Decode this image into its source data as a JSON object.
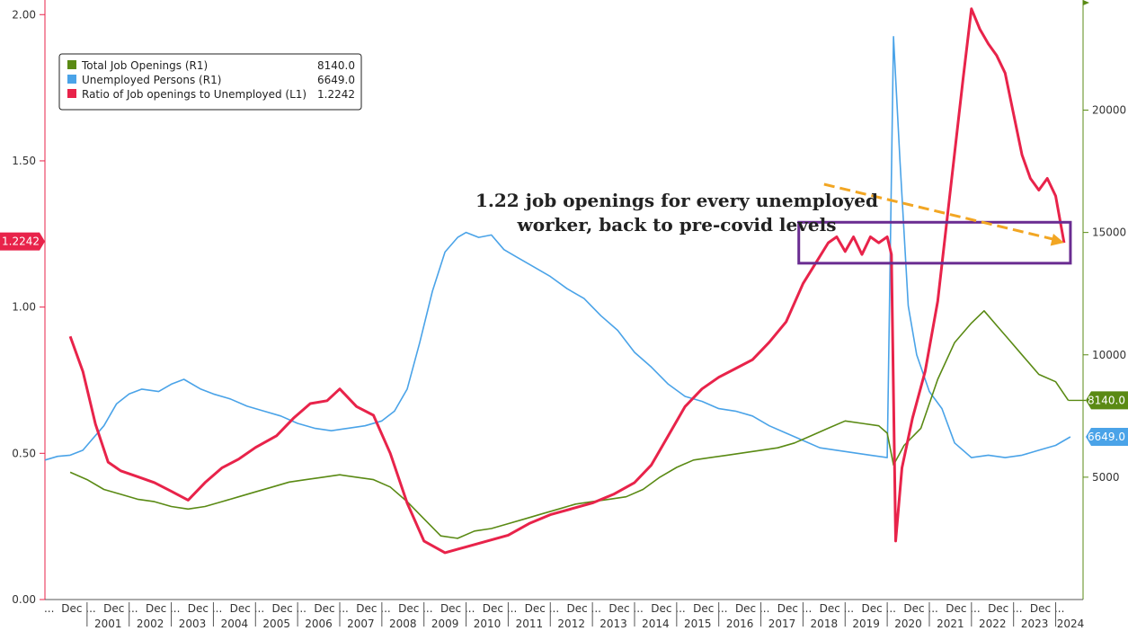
{
  "chart_data": {
    "type": "line",
    "title": "",
    "colors": {
      "openings": "#5a8a14",
      "unemployed": "#4aa3e8",
      "ratio": "#e8234a",
      "box": "#6a2c91",
      "arrow": "#f2a623"
    },
    "left_axis": {
      "range": [
        0,
        2.05
      ],
      "ticks": [
        "0.00",
        "0.50",
        "1.00",
        "1.50",
        "2.00"
      ],
      "tick_values": [
        0,
        0.5,
        1.0,
        1.5,
        2.0
      ]
    },
    "right_axis": {
      "range": [
        0,
        24500
      ],
      "ticks": [
        "5000",
        "10000",
        "15000",
        "20000"
      ],
      "tick_values": [
        5000,
        10000,
        15000,
        20000
      ]
    },
    "x_axis": {
      "range": [
        2000.0,
        2024.65
      ],
      "month_labels": [
        "...",
        "Dec ...",
        "Dec ...",
        "Dec ...",
        "Dec ...",
        "Dec ...",
        "Dec ...",
        "Dec ...",
        "Dec ...",
        "Dec ...",
        "Dec ...",
        "Dec ...",
        "Dec ...",
        "Dec ...",
        "Dec ...",
        "Dec ...",
        "Dec ...",
        "Dec ...",
        "Dec ...",
        "Dec ...",
        "Dec ...",
        "Dec ...",
        "Dec ...",
        "Dec ...",
        "Dec ..."
      ],
      "month_positions": [
        2000.1,
        2000.8,
        2001.8,
        2002.8,
        2003.8,
        2004.8,
        2005.8,
        2006.8,
        2007.8,
        2008.8,
        2009.8,
        2010.8,
        2011.8,
        2012.8,
        2013.8,
        2014.8,
        2015.8,
        2016.8,
        2017.8,
        2018.8,
        2019.8,
        2020.8,
        2021.8,
        2022.8,
        2023.8
      ],
      "years": [
        "2001",
        "2002",
        "2003",
        "2004",
        "2005",
        "2006",
        "2007",
        "2008",
        "2009",
        "2010",
        "2011",
        "2012",
        "2013",
        "2014",
        "2015",
        "2016",
        "2017",
        "2018",
        "2019",
        "2020",
        "2021",
        "2022",
        "2023",
        "2024"
      ]
    },
    "legend": {
      "placement": "top-left",
      "entries": [
        {
          "label": "Total Job Openings (R1)",
          "value": "8140.0",
          "series": "openings"
        },
        {
          "label": "Unemployed Persons (R1)",
          "value": "6649.0",
          "series": "unemployed"
        },
        {
          "label": "Ratio of Job openings to Unemployed (L1)",
          "value": "1.2242",
          "series": "ratio"
        }
      ]
    },
    "last_value_labels": {
      "ratio": "1.2242",
      "openings": "8140.0",
      "unemployed": "6649.0"
    },
    "last_values": {
      "ratio": 1.2242,
      "openings": 8140,
      "unemployed": 6649
    },
    "annotation": {
      "lines": [
        "1.22 job openings for every unemployed",
        "worker, back to pre-covid levels"
      ],
      "box": {
        "x_range": [
          2017.9,
          2024.35
        ],
        "y_range": [
          1.15,
          1.29
        ]
      },
      "arrow": {
        "from": [
          2018.5,
          1.42
        ],
        "to": [
          2024.2,
          1.22
        ]
      }
    },
    "series": [
      {
        "name": "Ratio of Job openings to Unemployed (L1)",
        "key": "ratio",
        "axis": "left",
        "x": [
          2000.6,
          2000.9,
          2001.2,
          2001.5,
          2001.8,
          2002.2,
          2002.6,
          2003.0,
          2003.4,
          2003.8,
          2004.2,
          2004.6,
          2005.0,
          2005.5,
          2005.9,
          2006.3,
          2006.7,
          2007.0,
          2007.4,
          2007.8,
          2008.2,
          2008.6,
          2009.0,
          2009.5,
          2010.0,
          2010.5,
          2011.0,
          2011.5,
          2012.0,
          2012.5,
          2013.0,
          2013.5,
          2014.0,
          2014.4,
          2014.8,
          2015.2,
          2015.6,
          2016.0,
          2016.4,
          2016.8,
          2017.2,
          2017.6,
          2018.0,
          2018.3,
          2018.6,
          2018.8,
          2019.0,
          2019.2,
          2019.4,
          2019.6,
          2019.8,
          2020.0,
          2020.1,
          2020.2,
          2020.35,
          2020.6,
          2020.9,
          2021.2,
          2021.5,
          2021.8,
          2022.0,
          2022.2,
          2022.4,
          2022.6,
          2022.8,
          2023.0,
          2023.2,
          2023.4,
          2023.6,
          2023.8,
          2024.0,
          2024.2
        ],
        "y": [
          0.9,
          0.78,
          0.6,
          0.47,
          0.44,
          0.42,
          0.4,
          0.37,
          0.34,
          0.4,
          0.45,
          0.48,
          0.52,
          0.56,
          0.62,
          0.67,
          0.68,
          0.72,
          0.66,
          0.63,
          0.5,
          0.33,
          0.2,
          0.16,
          0.18,
          0.2,
          0.22,
          0.26,
          0.29,
          0.31,
          0.33,
          0.36,
          0.4,
          0.46,
          0.56,
          0.66,
          0.72,
          0.76,
          0.79,
          0.82,
          0.88,
          0.95,
          1.08,
          1.15,
          1.22,
          1.24,
          1.19,
          1.24,
          1.18,
          1.24,
          1.22,
          1.24,
          1.18,
          0.2,
          0.45,
          0.62,
          0.78,
          1.02,
          1.4,
          1.78,
          2.02,
          1.95,
          1.9,
          1.86,
          1.8,
          1.66,
          1.52,
          1.44,
          1.4,
          1.44,
          1.38,
          1.22
        ]
      },
      {
        "name": "Unemployed Persons (R1)",
        "key": "unemployed",
        "axis": "right",
        "x": [
          2000.0,
          2000.3,
          2000.6,
          2000.9,
          2001.1,
          2001.4,
          2001.7,
          2002.0,
          2002.3,
          2002.7,
          2003.0,
          2003.3,
          2003.7,
          2004.0,
          2004.4,
          2004.8,
          2005.2,
          2005.6,
          2006.0,
          2006.4,
          2006.8,
          2007.2,
          2007.6,
          2008.0,
          2008.3,
          2008.6,
          2008.9,
          2009.2,
          2009.5,
          2009.8,
          2010.0,
          2010.3,
          2010.6,
          2010.9,
          2011.2,
          2011.6,
          2012.0,
          2012.4,
          2012.8,
          2013.2,
          2013.6,
          2014.0,
          2014.4,
          2014.8,
          2015.2,
          2015.6,
          2016.0,
          2016.4,
          2016.8,
          2017.2,
          2017.6,
          2018.0,
          2018.4,
          2018.8,
          2019.2,
          2019.6,
          2020.0,
          2020.15,
          2020.3,
          2020.5,
          2020.7,
          2021.0,
          2021.3,
          2021.6,
          2022.0,
          2022.4,
          2022.8,
          2023.2,
          2023.6,
          2024.0,
          2024.35
        ],
        "y": [
          5700,
          5850,
          5900,
          6100,
          6500,
          7100,
          8000,
          8400,
          8600,
          8500,
          8800,
          9000,
          8600,
          8400,
          8200,
          7900,
          7700,
          7500,
          7200,
          7000,
          6900,
          7000,
          7100,
          7300,
          7700,
          8600,
          10500,
          12600,
          14200,
          14800,
          15000,
          14800,
          14900,
          14300,
          14000,
          13600,
          13200,
          12700,
          12300,
          11600,
          11000,
          10100,
          9500,
          8800,
          8300,
          8100,
          7800,
          7700,
          7500,
          7100,
          6800,
          6500,
          6200,
          6100,
          6000,
          5900,
          5800,
          23000,
          18000,
          12000,
          10000,
          8500,
          7800,
          6400,
          5800,
          5900,
          5800,
          5900,
          6100,
          6300,
          6649
        ]
      },
      {
        "name": "Total Job Openings (R1)",
        "key": "openings",
        "axis": "right",
        "x": [
          2000.6,
          2001.0,
          2001.4,
          2001.8,
          2002.2,
          2002.6,
          2003.0,
          2003.4,
          2003.8,
          2004.2,
          2004.6,
          2005.0,
          2005.4,
          2005.8,
          2006.2,
          2006.6,
          2007.0,
          2007.4,
          2007.8,
          2008.2,
          2008.6,
          2009.0,
          2009.4,
          2009.8,
          2010.2,
          2010.6,
          2011.0,
          2011.4,
          2011.8,
          2012.2,
          2012.6,
          2013.0,
          2013.4,
          2013.8,
          2014.2,
          2014.6,
          2015.0,
          2015.4,
          2015.8,
          2016.2,
          2016.6,
          2017.0,
          2017.4,
          2017.8,
          2018.2,
          2018.6,
          2019.0,
          2019.4,
          2019.8,
          2020.0,
          2020.15,
          2020.4,
          2020.8,
          2021.2,
          2021.6,
          2022.0,
          2022.3,
          2022.6,
          2022.9,
          2023.2,
          2023.6,
          2024.0,
          2024.3
        ],
        "y": [
          5200,
          4900,
          4500,
          4300,
          4100,
          4000,
          3800,
          3700,
          3800,
          4000,
          4200,
          4400,
          4600,
          4800,
          4900,
          5000,
          5100,
          5000,
          4900,
          4600,
          4000,
          3300,
          2600,
          2500,
          2800,
          2900,
          3100,
          3300,
          3500,
          3700,
          3900,
          4000,
          4100,
          4200,
          4500,
          5000,
          5400,
          5700,
          5800,
          5900,
          6000,
          6100,
          6200,
          6400,
          6700,
          7000,
          7300,
          7200,
          7100,
          6800,
          5500,
          6300,
          7000,
          9000,
          10500,
          11300,
          11800,
          11200,
          10600,
          10000,
          9200,
          8900,
          8140
        ]
      }
    ]
  }
}
